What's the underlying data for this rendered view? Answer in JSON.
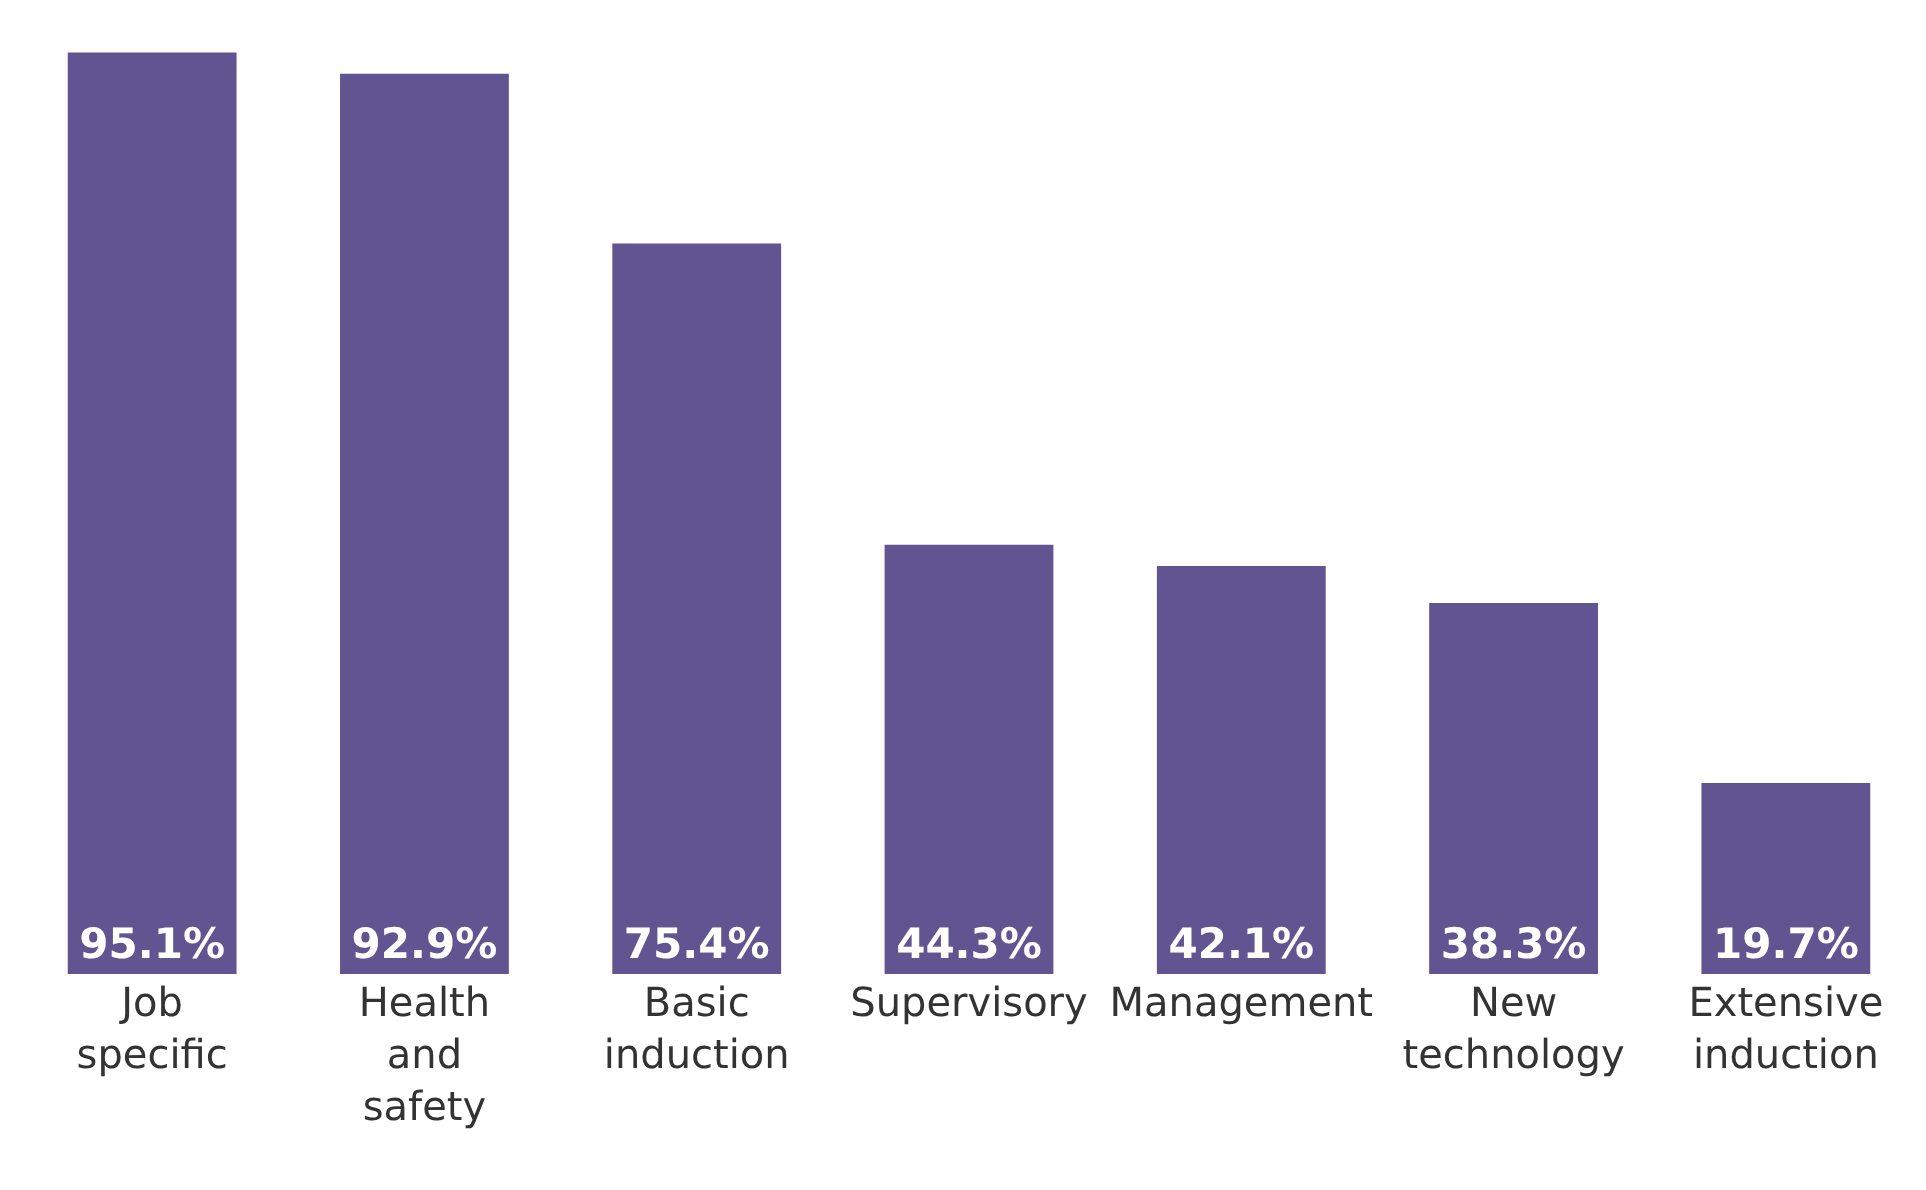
{
  "chart_data": {
    "type": "bar",
    "categories": [
      "Job specific",
      "Health and safety",
      "Basic induction",
      "Supervisory",
      "Management",
      "New technology",
      "Extensive induction"
    ],
    "values": [
      95.1,
      92.9,
      75.4,
      44.3,
      42.1,
      38.3,
      19.7
    ],
    "value_labels": [
      "95.1%",
      "92.9%",
      "75.4%",
      "44.3%",
      "42.1%",
      "38.3%",
      "19.7%"
    ],
    "color": "#605590",
    "grid": false,
    "legend": false
  }
}
